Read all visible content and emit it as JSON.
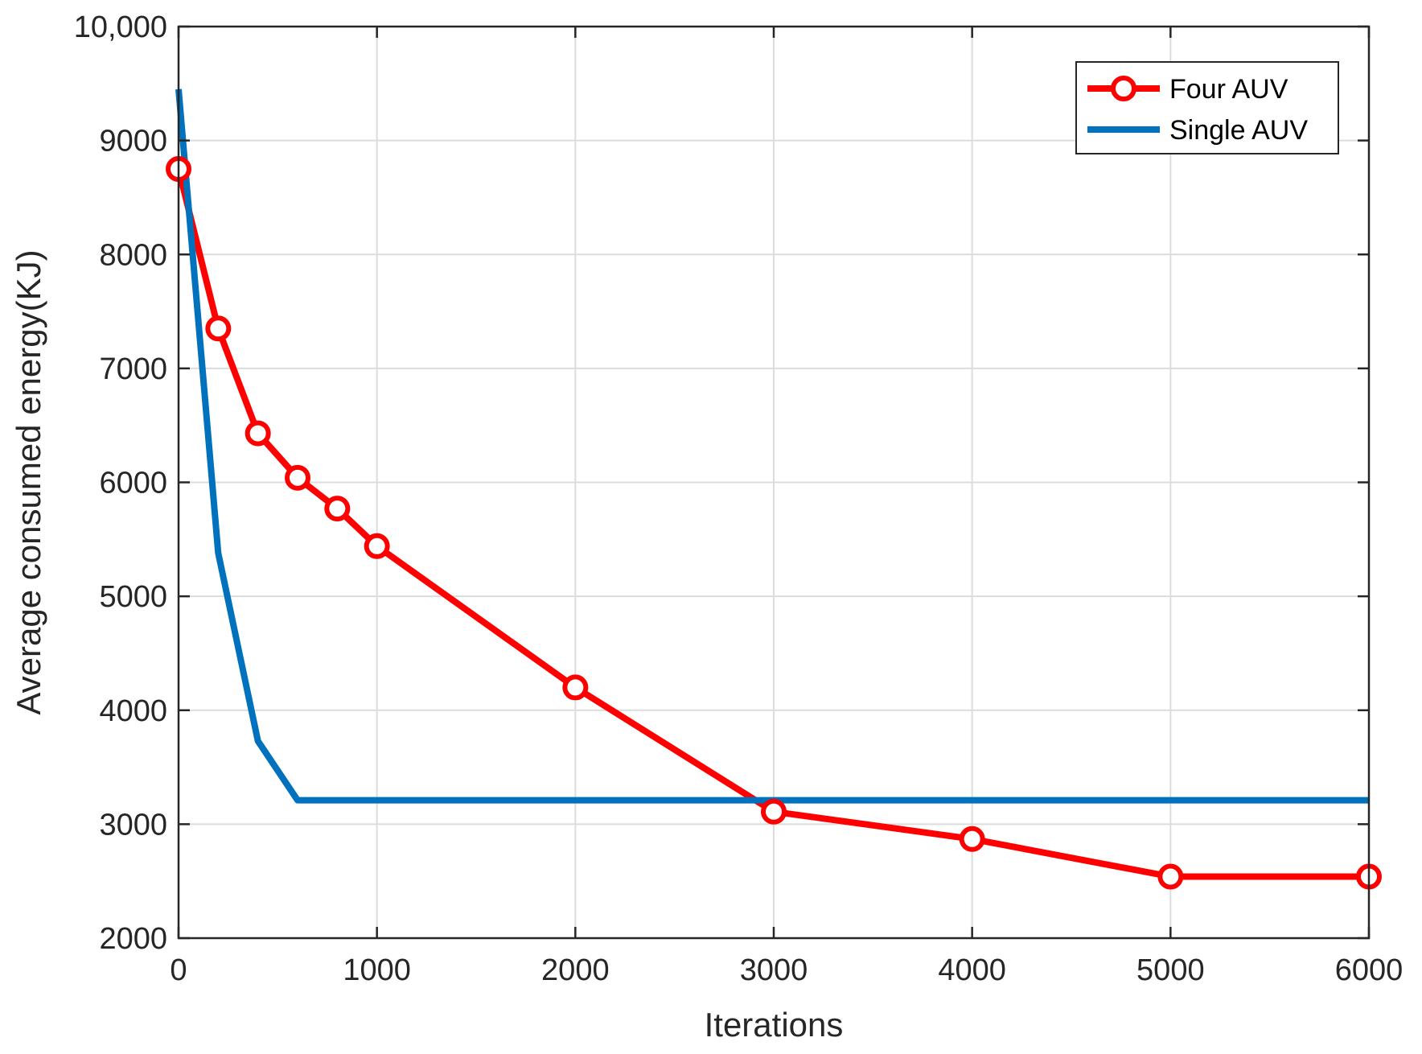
{
  "chart_data": {
    "type": "line",
    "xlabel": "Iterations",
    "ylabel": "Average consumed energy(KJ)",
    "xlim": [
      0,
      6000
    ],
    "ylim": [
      2000,
      10000
    ],
    "x_ticks": [
      0,
      1000,
      2000,
      3000,
      4000,
      5000,
      6000
    ],
    "x_tick_labels": [
      "0",
      "1000",
      "2000",
      "3000",
      "4000",
      "5000",
      "6000"
    ],
    "y_ticks": [
      2000,
      3000,
      4000,
      5000,
      6000,
      7000,
      8000,
      9000,
      10000
    ],
    "y_tick_labels": [
      "2000",
      "3000",
      "4000",
      "5000",
      "6000",
      "7000",
      "8000",
      "9000",
      "10,000"
    ],
    "grid": true,
    "legend_position": "top-right",
    "series": [
      {
        "name": "Four AUV",
        "color": "#ff0000",
        "marker": "circle",
        "x": [
          0,
          200,
          400,
          600,
          800,
          1000,
          2000,
          3000,
          4000,
          5000,
          6000
        ],
        "y": [
          8750,
          7350,
          6430,
          6040,
          5770,
          5440,
          4200,
          3110,
          2870,
          2540,
          2540
        ]
      },
      {
        "name": "Single AUV",
        "color": "#0072bd",
        "marker": "none",
        "x": [
          0,
          200,
          400,
          600,
          1000,
          2000,
          3000,
          4000,
          5000,
          6000
        ],
        "y": [
          9450,
          5380,
          3730,
          3210,
          3210,
          3210,
          3210,
          3210,
          3210,
          3210
        ]
      }
    ]
  }
}
